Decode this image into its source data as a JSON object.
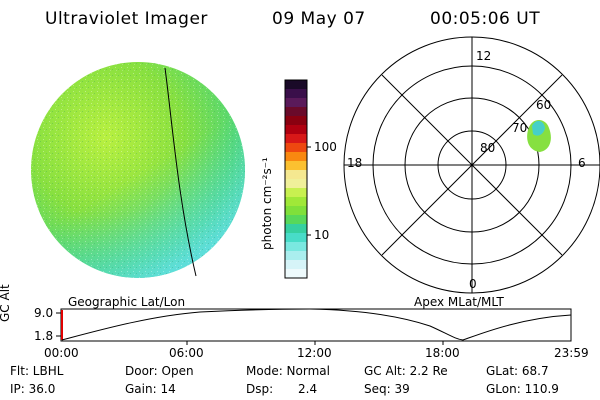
{
  "header": {
    "instrument": "Ultraviolet Imager",
    "date": "09 May 07",
    "time": "00:05:06 UT"
  },
  "colorbar": {
    "unit_label": "photon cm⁻²s⁻¹",
    "ticks": [
      "100",
      "10"
    ],
    "colors": [
      "#1a0a28",
      "#3a0f4a",
      "#5a1a5a",
      "#6a0a2a",
      "#8a0010",
      "#b00010",
      "#d81818",
      "#ee4810",
      "#f98810",
      "#fbc030",
      "#f5e890",
      "#f0f09a",
      "#c8f050",
      "#a0e838",
      "#80e03a",
      "#58d85a",
      "#36d0a0",
      "#48dcc8",
      "#7ae8e0",
      "#aaeeee",
      "#d6f4f8",
      "#eefafc"
    ]
  },
  "polar": {
    "hour_labels": [
      "12",
      "18",
      "6",
      "0"
    ],
    "lat_labels": [
      "60",
      "70",
      "80"
    ]
  },
  "map_labels": {
    "geo": "Geographic Lat/Lon",
    "apex": "Apex MLat/MLT"
  },
  "altitude": {
    "axis_label": "GC Alt",
    "ticks": [
      "9.0",
      "1.8"
    ],
    "time_ticks": [
      "00:00",
      "06:00",
      "12:00",
      "18:00",
      "23:59"
    ]
  },
  "info": {
    "row1": {
      "flt": "Flt: LBHL",
      "door": "Door: Open",
      "mode": "Mode: Normal",
      "gcalt": "GC Alt: 2.2 Re",
      "glat": "GLat: 68.7"
    },
    "row2": {
      "ip": "IP: 36.0",
      "gain": "Gain: 14",
      "dsp_label": "Dsp:",
      "dsp_value": "2.4",
      "seq": "Seq: 39",
      "glon": "GLon: 110.9"
    }
  }
}
